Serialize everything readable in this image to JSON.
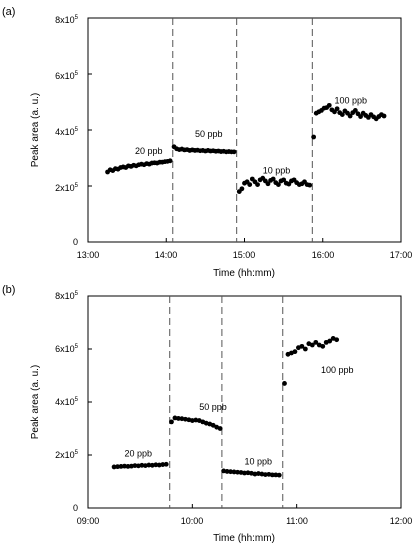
{
  "chart_data": [
    {
      "type": "scatter",
      "panel_label": "(a)",
      "xlabel": "Time (hh:mm)",
      "ylabel": "Peak area (a. u.)",
      "xlim": [
        "13:00",
        "17:00"
      ],
      "ylim": [
        0,
        800000
      ],
      "x_ticks": [
        "13:00",
        "14:00",
        "15:00",
        "16:00",
        "17:00"
      ],
      "y_ticks": [
        {
          "label": "0",
          "value": 0
        },
        {
          "label": "2x10",
          "exp": "5",
          "value": 200000
        },
        {
          "label": "4x10",
          "exp": "5",
          "value": 400000
        },
        {
          "label": "6x10",
          "exp": "5",
          "value": 600000
        },
        {
          "label": "8x10",
          "exp": "5",
          "value": 800000
        }
      ],
      "dividers": [
        "14:05",
        "14:54",
        "15:52"
      ],
      "annotations": [
        {
          "text": "20 ppb",
          "x": "13:36",
          "y": 315000
        },
        {
          "text": "50 ppb",
          "x": "14:22",
          "y": 375000
        },
        {
          "text": "10 ppb",
          "x": "15:14",
          "y": 245000
        },
        {
          "text": "100 ppb",
          "x": "16:09",
          "y": 495000
        }
      ],
      "series": [
        {
          "points": [
            [
              "13:15",
              250000
            ],
            [
              "13:17",
              258000
            ],
            [
              "13:19",
              255000
            ],
            [
              "13:21",
              262000
            ],
            [
              "13:23",
              260000
            ],
            [
              "13:25",
              266000
            ],
            [
              "13:27",
              268000
            ],
            [
              "13:29",
              266000
            ],
            [
              "13:31",
              272000
            ],
            [
              "13:33",
              270000
            ],
            [
              "13:35",
              274000
            ],
            [
              "13:37",
              272000
            ],
            [
              "13:39",
              276000
            ],
            [
              "13:41",
              278000
            ],
            [
              "13:43",
              276000
            ],
            [
              "13:45",
              280000
            ],
            [
              "13:47",
              278000
            ],
            [
              "13:49",
              282000
            ],
            [
              "13:51",
              283000
            ],
            [
              "13:53",
              282000
            ],
            [
              "13:55",
              285000
            ],
            [
              "13:57",
              285000
            ],
            [
              "13:59",
              287000
            ],
            [
              "14:01",
              288000
            ],
            [
              "14:03",
              290000
            ],
            [
              "14:06",
              340000
            ],
            [
              "14:08",
              333000
            ],
            [
              "14:10",
              330000
            ],
            [
              "14:12",
              332000
            ],
            [
              "14:14",
              329000
            ],
            [
              "14:16",
              330000
            ],
            [
              "14:18",
              327000
            ],
            [
              "14:20",
              329000
            ],
            [
              "14:22",
              327000
            ],
            [
              "14:24",
              328000
            ],
            [
              "14:26",
              326000
            ],
            [
              "14:28",
              327000
            ],
            [
              "14:30",
              325000
            ],
            [
              "14:32",
              327000
            ],
            [
              "14:34",
              325000
            ],
            [
              "14:36",
              326000
            ],
            [
              "14:38",
              324000
            ],
            [
              "14:40",
              325000
            ],
            [
              "14:42",
              323000
            ],
            [
              "14:44",
              324000
            ],
            [
              "14:46",
              322000
            ],
            [
              "14:48",
              323000
            ],
            [
              "14:50",
              322000
            ],
            [
              "14:52",
              322000
            ],
            [
              "14:56",
              180000
            ],
            [
              "14:58",
              190000
            ],
            [
              "15:00",
              210000
            ],
            [
              "15:02",
              215000
            ],
            [
              "15:04",
              205000
            ],
            [
              "15:06",
              225000
            ],
            [
              "15:08",
              215000
            ],
            [
              "15:10",
              205000
            ],
            [
              "15:12",
              222000
            ],
            [
              "15:14",
              228000
            ],
            [
              "15:16",
              218000
            ],
            [
              "15:18",
              208000
            ],
            [
              "15:20",
              220000
            ],
            [
              "15:22",
              225000
            ],
            [
              "15:24",
              212000
            ],
            [
              "15:26",
              205000
            ],
            [
              "15:28",
              218000
            ],
            [
              "15:30",
              222000
            ],
            [
              "15:32",
              210000
            ],
            [
              "15:34",
              207000
            ],
            [
              "15:36",
              218000
            ],
            [
              "15:38",
              222000
            ],
            [
              "15:40",
              212000
            ],
            [
              "15:42",
              205000
            ],
            [
              "15:44",
              208000
            ],
            [
              "15:46",
              215000
            ],
            [
              "15:48",
              205000
            ],
            [
              "15:50",
              203000
            ],
            [
              "15:53",
              375000
            ],
            [
              "15:55",
              460000
            ],
            [
              "15:57",
              465000
            ],
            [
              "15:59",
              470000
            ],
            [
              "16:01",
              478000
            ],
            [
              "16:03",
              480000
            ],
            [
              "16:05",
              488000
            ],
            [
              "16:07",
              472000
            ],
            [
              "16:09",
              465000
            ],
            [
              "16:11",
              476000
            ],
            [
              "16:13",
              462000
            ],
            [
              "16:15",
              455000
            ],
            [
              "16:17",
              468000
            ],
            [
              "16:19",
              460000
            ],
            [
              "16:21",
              450000
            ],
            [
              "16:23",
              462000
            ],
            [
              "16:25",
              470000
            ],
            [
              "16:27",
              458000
            ],
            [
              "16:29",
              448000
            ],
            [
              "16:31",
              460000
            ],
            [
              "16:33",
              452000
            ],
            [
              "16:35",
              445000
            ],
            [
              "16:37",
              455000
            ],
            [
              "16:39",
              447000
            ],
            [
              "16:41",
              440000
            ],
            [
              "16:43",
              448000
            ],
            [
              "16:45",
              455000
            ],
            [
              "16:47",
              450000
            ]
          ]
        }
      ]
    },
    {
      "type": "scatter",
      "panel_label": "(b)",
      "xlabel": "Time (hh:mm)",
      "ylabel": "Peak area (a. u.)",
      "xlim": [
        "09:00",
        "12:00"
      ],
      "ylim": [
        0,
        800000
      ],
      "x_ticks": [
        "09:00",
        "10:00",
        "11:00",
        "12:00"
      ],
      "y_ticks": [
        {
          "label": "0",
          "value": 0
        },
        {
          "label": "2x10",
          "exp": "5",
          "value": 200000
        },
        {
          "label": "4x10",
          "exp": "5",
          "value": 400000
        },
        {
          "label": "6x10",
          "exp": "5",
          "value": 600000
        },
        {
          "label": "8x10",
          "exp": "5",
          "value": 800000
        }
      ],
      "dividers": [
        "09:47",
        "10:17",
        "10:52"
      ],
      "annotations": [
        {
          "text": "20 ppb",
          "x": "09:21",
          "y": 195000
        },
        {
          "text": "50 ppb",
          "x": "10:04",
          "y": 370000
        },
        {
          "text": "10 ppb",
          "x": "10:30",
          "y": 165000
        },
        {
          "text": "100 ppb",
          "x": "11:14",
          "y": 510000
        }
      ],
      "series": [
        {
          "points": [
            [
              "09:15",
              155000
            ],
            [
              "09:17",
              156000
            ],
            [
              "09:19",
              157000
            ],
            [
              "09:21",
              158000
            ],
            [
              "09:23",
              157000
            ],
            [
              "09:25",
              158000
            ],
            [
              "09:27",
              160000
            ],
            [
              "09:29",
              159000
            ],
            [
              "09:31",
              161000
            ],
            [
              "09:33",
              160000
            ],
            [
              "09:35",
              162000
            ],
            [
              "09:37",
              161000
            ],
            [
              "09:39",
              163000
            ],
            [
              "09:41",
              162000
            ],
            [
              "09:43",
              164000
            ],
            [
              "09:45",
              165000
            ],
            [
              "09:48",
              325000
            ],
            [
              "09:50",
              340000
            ],
            [
              "09:52",
              338000
            ],
            [
              "09:54",
              337000
            ],
            [
              "09:56",
              335000
            ],
            [
              "09:58",
              333000
            ],
            [
              "10:00",
              330000
            ],
            [
              "10:02",
              332000
            ],
            [
              "10:04",
              330000
            ],
            [
              "10:06",
              325000
            ],
            [
              "10:08",
              320000
            ],
            [
              "10:10",
              317000
            ],
            [
              "10:12",
              312000
            ],
            [
              "10:14",
              305000
            ],
            [
              "10:16",
              300000
            ],
            [
              "10:18",
              140000
            ],
            [
              "10:20",
              138000
            ],
            [
              "10:22",
              137000
            ],
            [
              "10:24",
              136000
            ],
            [
              "10:26",
              135000
            ],
            [
              "10:28",
              134000
            ],
            [
              "10:30",
              132000
            ],
            [
              "10:32",
              133000
            ],
            [
              "10:34",
              131000
            ],
            [
              "10:36",
              128000
            ],
            [
              "10:38",
              130000
            ],
            [
              "10:40",
              128000
            ],
            [
              "10:42",
              126000
            ],
            [
              "10:44",
              127000
            ],
            [
              "10:46",
              125000
            ],
            [
              "10:48",
              125000
            ],
            [
              "10:50",
              124000
            ],
            [
              "10:53",
              470000
            ],
            [
              "10:55",
              580000
            ],
            [
              "10:57",
              585000
            ],
            [
              "10:59",
              590000
            ],
            [
              "11:01",
              605000
            ],
            [
              "11:03",
              610000
            ],
            [
              "11:05",
              600000
            ],
            [
              "11:07",
              620000
            ],
            [
              "11:09",
              615000
            ],
            [
              "11:11",
              625000
            ],
            [
              "11:13",
              615000
            ],
            [
              "11:15",
              610000
            ],
            [
              "11:17",
              625000
            ],
            [
              "11:19",
              630000
            ],
            [
              "11:21",
              640000
            ],
            [
              "11:23",
              635000
            ]
          ]
        }
      ]
    }
  ]
}
